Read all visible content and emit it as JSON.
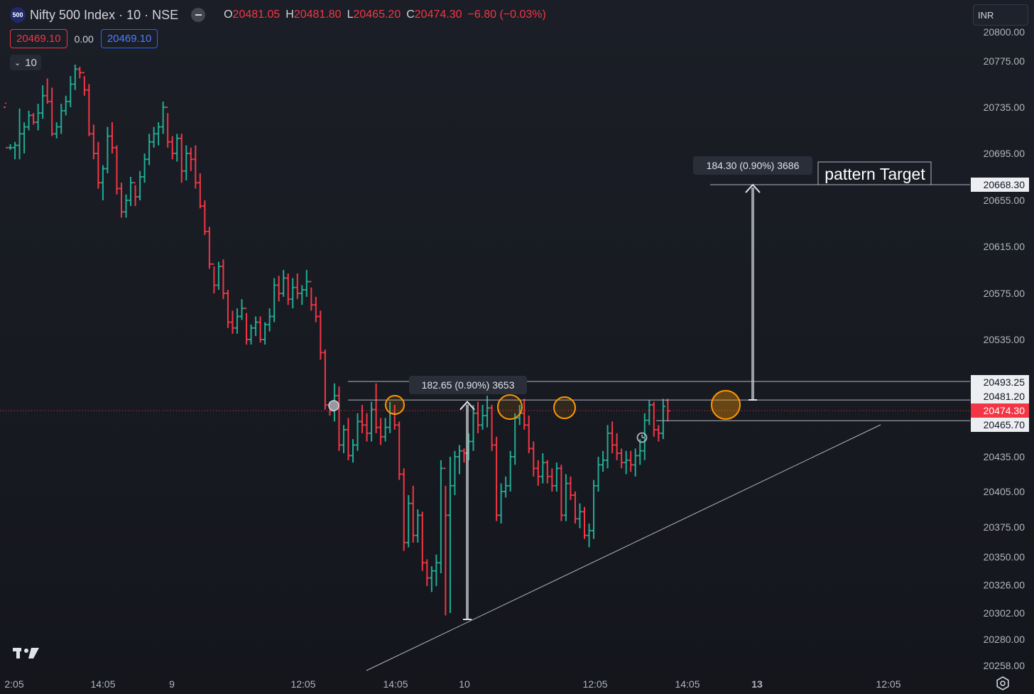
{
  "header": {
    "symbol_badge": "500",
    "symbol_title": "Nifty 500 Index · 10 · NSE",
    "ohlc": {
      "o_label": "O",
      "o_value": "20481.05",
      "h_label": "H",
      "h_value": "20481.80",
      "l_label": "L",
      "l_value": "20465.20",
      "c_label": "C",
      "c_value": "20474.30",
      "change": "−6.80 (−0.03%)"
    },
    "sell_price": "20469.10",
    "spread": "0.00",
    "buy_price": "20469.10",
    "interval": "10",
    "currency": "INR"
  },
  "colors": {
    "up": "#22ab94",
    "down": "#f23645",
    "marker_orange": "#ff9800",
    "blue": "#2962ff",
    "text": "#d1d4dc",
    "line": "#b2b5be"
  },
  "icons": [
    "tradingview-logo-icon",
    "settings-gear-icon",
    "alarm-clock-icon",
    "chevron-down-icon",
    "eye-toggle-icon"
  ],
  "chart_data": {
    "type": "ohlc-bar",
    "y_ticks": [
      20800,
      20775,
      20735,
      20695,
      20655,
      20615,
      20575,
      20535,
      20435,
      20405,
      20375,
      20350,
      20326,
      20302,
      20280,
      20258
    ],
    "x_ticks": [
      "2:05",
      "14:05",
      "9",
      "12:05",
      "14:05",
      "10",
      "12:05",
      "14:05",
      "13",
      "12:05"
    ],
    "ylim": [
      20258,
      20800
    ],
    "price_labels": [
      {
        "value": "20668.30",
        "style": "white"
      },
      {
        "value": "20493.25",
        "style": "white"
      },
      {
        "value": "20481.20",
        "style": "white"
      },
      {
        "value": "20474.30",
        "style": "red"
      },
      {
        "value": "20465.70",
        "style": "white"
      }
    ],
    "horizontal_lines": [
      20493.25,
      20481.2,
      20465.7,
      20668.3
    ],
    "current_price_line": 20474.3,
    "trendline": {
      "from": [
        0,
        20258
      ],
      "to": [
        1,
        20465
      ]
    },
    "measurements": [
      {
        "label": "182.65 (0.90%) 3653",
        "from": 20298,
        "to": 20480
      },
      {
        "label": "184.30 (0.90%) 3686",
        "from": 20484,
        "to": 20668.3
      }
    ],
    "annotation": "pattern Target",
    "resistance_touches": 5,
    "bars": [
      [
        20735,
        20739,
        20738,
        20700
      ],
      [
        20700,
        20703,
        20698,
        20700
      ],
      [
        20700,
        20705,
        20690,
        20702
      ],
      [
        20702,
        20734,
        20690,
        20712
      ],
      [
        20712,
        20722,
        20695,
        20718
      ],
      [
        20718,
        20732,
        20715,
        20728
      ],
      [
        20728,
        20730,
        20720,
        20722
      ],
      [
        20722,
        20738,
        20715,
        20730
      ],
      [
        20730,
        20754,
        20725,
        20745
      ],
      [
        20745,
        20760,
        20738,
        20740
      ],
      [
        20740,
        20752,
        20710,
        20712
      ],
      [
        20712,
        20722,
        20708,
        20718
      ],
      [
        20718,
        20738,
        20712,
        20732
      ],
      [
        20732,
        20745,
        20728,
        20740
      ],
      [
        20740,
        20762,
        20735,
        20755
      ],
      [
        20755,
        20772,
        20750,
        20768
      ],
      [
        20768,
        20770,
        20760,
        20765
      ],
      [
        20765,
        20762,
        20745,
        20750
      ],
      [
        20750,
        20755,
        20710,
        20712
      ],
      [
        20712,
        20720,
        20690,
        20695
      ],
      [
        20695,
        20705,
        20665,
        20670
      ],
      [
        20670,
        20685,
        20655,
        20682
      ],
      [
        20682,
        20718,
        20678,
        20710
      ],
      [
        20710,
        20722,
        20695,
        20700
      ],
      [
        20700,
        20702,
        20660,
        20665
      ],
      [
        20665,
        20670,
        20640,
        20645
      ],
      [
        20645,
        20660,
        20640,
        20655
      ],
      [
        20655,
        20675,
        20650,
        20670
      ],
      [
        20670,
        20668,
        20650,
        20658
      ],
      [
        20658,
        20680,
        20655,
        20675
      ],
      [
        20675,
        20695,
        20670,
        20690
      ],
      [
        20690,
        20712,
        20685,
        20705
      ],
      [
        20705,
        20718,
        20700,
        20712
      ],
      [
        20712,
        20722,
        20702,
        20718
      ],
      [
        20718,
        20740,
        20712,
        20735
      ],
      [
        20735,
        20730,
        20700,
        20705
      ],
      [
        20705,
        20710,
        20690,
        20695
      ],
      [
        20695,
        20712,
        20688,
        20708
      ],
      [
        20708,
        20712,
        20670,
        20680
      ],
      [
        20680,
        20702,
        20672,
        20695
      ],
      [
        20695,
        20700,
        20680,
        20690
      ],
      [
        20690,
        20702,
        20665,
        20670
      ],
      [
        20670,
        20678,
        20648,
        20650
      ],
      [
        20650,
        20655,
        20625,
        20628
      ],
      [
        20628,
        20632,
        20596,
        20600
      ],
      [
        20600,
        20598,
        20575,
        20582
      ],
      [
        20582,
        20602,
        20578,
        20598
      ],
      [
        20598,
        20604,
        20570,
        20575
      ],
      [
        20575,
        20578,
        20545,
        20550
      ],
      [
        20550,
        20560,
        20540,
        20545
      ],
      [
        20545,
        20562,
        20540,
        20555
      ],
      [
        20555,
        20570,
        20552,
        20562
      ],
      [
        20562,
        20558,
        20530,
        20535
      ],
      [
        20535,
        20548,
        20530,
        20545
      ],
      [
        20545,
        20555,
        20538,
        20550
      ],
      [
        20550,
        20555,
        20532,
        20535
      ],
      [
        20535,
        20550,
        20530,
        20548
      ],
      [
        20548,
        20562,
        20542,
        20555
      ],
      [
        20555,
        20588,
        20550,
        20582
      ],
      [
        20582,
        20590,
        20568,
        20575
      ],
      [
        20575,
        20595,
        20572,
        20588
      ],
      [
        20588,
        20592,
        20565,
        20570
      ],
      [
        20570,
        20588,
        20562,
        20580
      ],
      [
        20580,
        20592,
        20570,
        20575
      ],
      [
        20575,
        20582,
        20565,
        20578
      ],
      [
        20578,
        20595,
        20572,
        20585
      ],
      [
        20585,
        20580,
        20560,
        20565
      ],
      [
        20565,
        20572,
        20550,
        20555
      ],
      [
        20555,
        20560,
        20515,
        20522
      ],
      [
        20522,
        20525,
        20475,
        20478
      ],
      [
        20478,
        20480,
        20470,
        20474
      ],
      [
        20474,
        20492,
        20465,
        20484
      ],
      [
        20484,
        20490,
        20440,
        20445
      ],
      [
        20445,
        20462,
        20438,
        20458
      ],
      [
        20458,
        20468,
        20432,
        20436
      ],
      [
        20436,
        20450,
        20430,
        20445
      ],
      [
        20445,
        20472,
        20440,
        20465
      ],
      [
        20465,
        20478,
        20455,
        20462
      ],
      [
        20462,
        20472,
        20448,
        20455
      ],
      [
        20455,
        20480,
        20448,
        20475
      ],
      [
        20475,
        20492,
        20455,
        20460
      ],
      [
        20460,
        20468,
        20445,
        20452
      ],
      [
        20452,
        20468,
        20448,
        20460
      ],
      [
        20460,
        20480,
        20455,
        20472
      ],
      [
        20472,
        20478,
        20458,
        20462
      ],
      [
        20462,
        20465,
        20415,
        20420
      ],
      [
        20420,
        20425,
        20355,
        20362
      ],
      [
        20362,
        20402,
        20358,
        20395
      ],
      [
        20395,
        20410,
        20362,
        20368
      ],
      [
        20368,
        20390,
        20362,
        20385
      ],
      [
        20385,
        20388,
        20338,
        20345
      ],
      [
        20345,
        20348,
        20325,
        20332
      ],
      [
        20332,
        20342,
        20320,
        20338
      ],
      [
        20338,
        20352,
        20325,
        20345
      ],
      [
        20345,
        20432,
        20336,
        20425
      ],
      [
        20425,
        20410,
        20300,
        20385
      ],
      [
        20385,
        20435,
        20302,
        20410
      ],
      [
        20410,
        20440,
        20402,
        20435
      ],
      [
        20435,
        20445,
        20420,
        20440
      ],
      [
        20440,
        20442,
        20430,
        20438
      ],
      [
        20438,
        20455,
        20432,
        20448
      ],
      [
        20448,
        20478,
        20440,
        20472
      ],
      [
        20472,
        20480,
        20455,
        20462
      ],
      [
        20462,
        20478,
        20458,
        20470
      ],
      [
        20470,
        20484,
        20460,
        20476
      ],
      [
        20476,
        20478,
        20440,
        20445
      ],
      [
        20445,
        20452,
        20380,
        20385
      ],
      [
        20385,
        20412,
        20378,
        20405
      ],
      [
        20405,
        20418,
        20400,
        20410
      ],
      [
        20410,
        20440,
        20405,
        20435
      ],
      [
        20435,
        20472,
        20428,
        20468
      ],
      [
        20468,
        20478,
        20462,
        20472
      ],
      [
        20472,
        20482,
        20458,
        20462
      ],
      [
        20462,
        20470,
        20438,
        20442
      ],
      [
        20442,
        20448,
        20418,
        20425
      ],
      [
        20425,
        20432,
        20410,
        20418
      ],
      [
        20418,
        20438,
        20412,
        20430
      ],
      [
        20430,
        20432,
        20412,
        20418
      ],
      [
        20418,
        20425,
        20405,
        20410
      ],
      [
        20410,
        20430,
        20405,
        20425
      ],
      [
        20425,
        20428,
        20380,
        20385
      ],
      [
        20385,
        20420,
        20380,
        20412
      ],
      [
        20412,
        20418,
        20398,
        20402
      ],
      [
        20402,
        20405,
        20378,
        20382
      ],
      [
        20382,
        20395,
        20374,
        20388
      ],
      [
        20388,
        20392,
        20365,
        20368
      ],
      [
        20368,
        20378,
        20358,
        20372
      ],
      [
        20372,
        20415,
        20365,
        20410
      ],
      [
        20410,
        20435,
        20405,
        20428
      ],
      [
        20428,
        20440,
        20422,
        20432
      ],
      [
        20432,
        20462,
        20425,
        20455
      ],
      [
        20455,
        20465,
        20438,
        20445
      ],
      [
        20445,
        20455,
        20432,
        20438
      ],
      [
        20438,
        20442,
        20425,
        20430
      ],
      [
        20430,
        20440,
        20420,
        20432
      ],
      [
        20432,
        20440,
        20422,
        20428
      ],
      [
        20428,
        20442,
        20418,
        20436
      ],
      [
        20436,
        20450,
        20428,
        20440
      ],
      [
        20440,
        20472,
        20432,
        20466
      ],
      [
        20466,
        20481,
        20462,
        20478
      ],
      [
        20478,
        20480,
        20452,
        20458
      ],
      [
        20458,
        20462,
        20448,
        20455
      ],
      [
        20455,
        20482,
        20450,
        20477
      ],
      [
        20481,
        20482,
        20465,
        20474
      ]
    ]
  }
}
